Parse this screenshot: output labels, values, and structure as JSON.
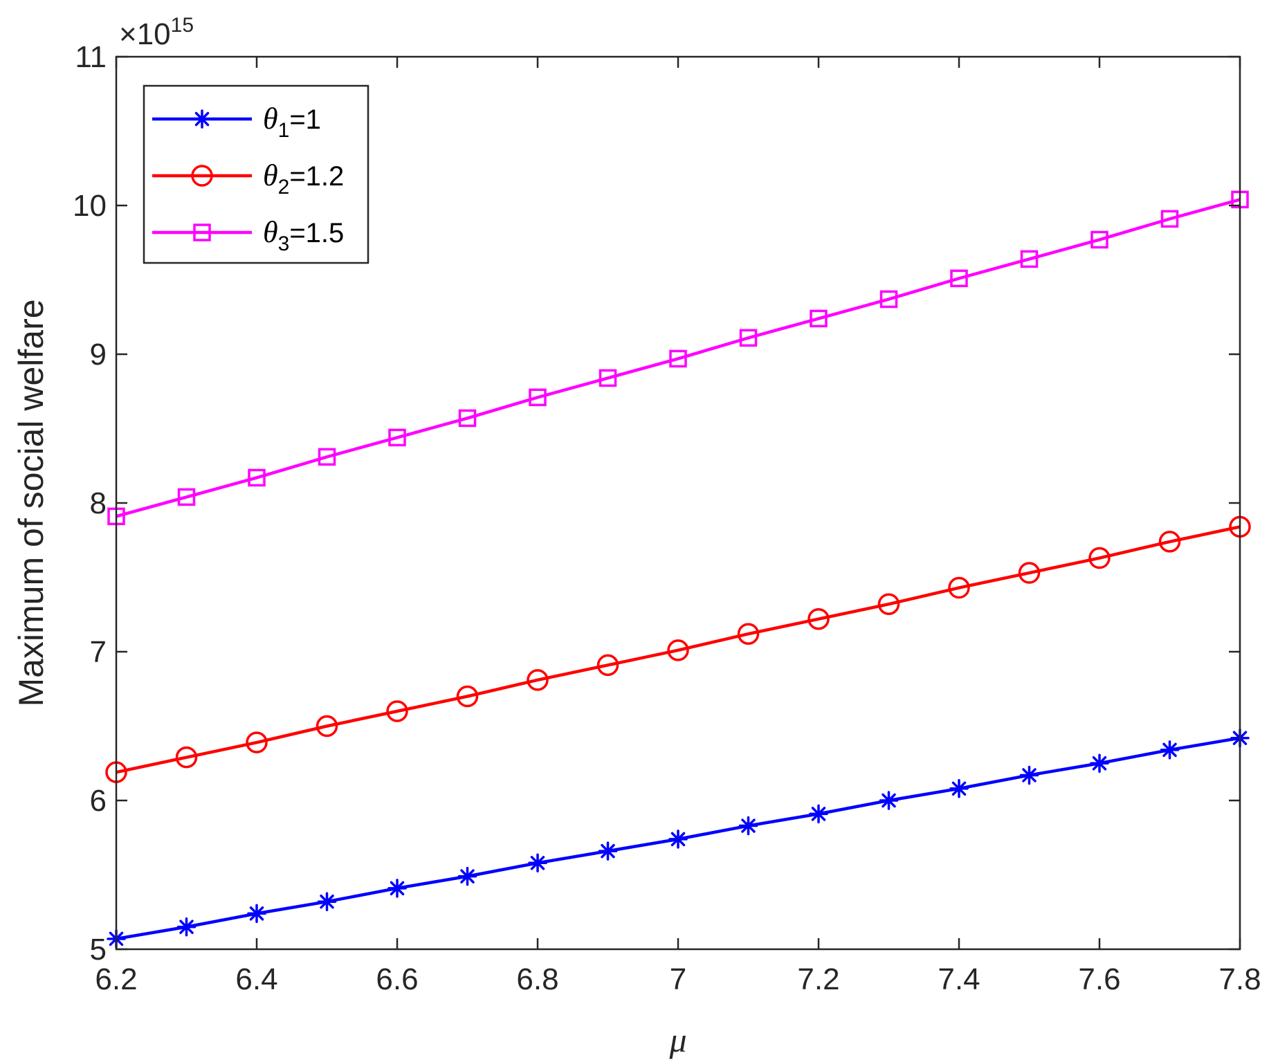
{
  "chart_data": {
    "type": "line",
    "xlabel": "μ",
    "ylabel": "Maximum of social welfare",
    "exponent_label": "×10",
    "exponent_power": "15",
    "x": [
      6.2,
      6.3,
      6.4,
      6.5,
      6.6,
      6.7,
      6.8,
      6.9,
      7.0,
      7.1,
      7.2,
      7.3,
      7.4,
      7.5,
      7.6,
      7.7,
      7.8
    ],
    "xlim": [
      6.2,
      7.8
    ],
    "ylim": [
      5,
      11
    ],
    "x_ticks": [
      "6.2",
      "6.4",
      "6.6",
      "6.8",
      "7",
      "7.2",
      "7.4",
      "7.6",
      "7.8"
    ],
    "x_tick_values": [
      6.2,
      6.4,
      6.6,
      6.8,
      7.0,
      7.2,
      7.4,
      7.6,
      7.8
    ],
    "y_ticks": [
      "5",
      "6",
      "7",
      "8",
      "9",
      "10",
      "11"
    ],
    "y_tick_values": [
      5,
      6,
      7,
      8,
      9,
      10,
      11
    ],
    "grid": false,
    "legend_position": "top-left",
    "series": [
      {
        "name": "θ1=1",
        "symbol": "θ",
        "subscript": "1",
        "value_label": "=1",
        "color": "#0000ff",
        "marker": "asterisk",
        "values": [
          5.07,
          5.15,
          5.24,
          5.32,
          5.41,
          5.49,
          5.58,
          5.66,
          5.74,
          5.83,
          5.91,
          6.0,
          6.08,
          6.17,
          6.25,
          6.34,
          6.42
        ]
      },
      {
        "name": "θ2=1.2",
        "symbol": "θ",
        "subscript": "2",
        "value_label": "=1.2",
        "color": "#ff0000",
        "marker": "circle",
        "values": [
          6.19,
          6.29,
          6.39,
          6.5,
          6.6,
          6.7,
          6.81,
          6.91,
          7.01,
          7.12,
          7.22,
          7.32,
          7.43,
          7.53,
          7.63,
          7.74,
          7.84
        ]
      },
      {
        "name": "θ3=1.5",
        "symbol": "θ",
        "subscript": "3",
        "value_label": "=1.5",
        "color": "#ff00ff",
        "marker": "square",
        "values": [
          7.91,
          8.04,
          8.17,
          8.31,
          8.44,
          8.57,
          8.71,
          8.84,
          8.97,
          9.11,
          9.24,
          9.37,
          9.51,
          9.64,
          9.77,
          9.91,
          10.04
        ]
      }
    ]
  }
}
